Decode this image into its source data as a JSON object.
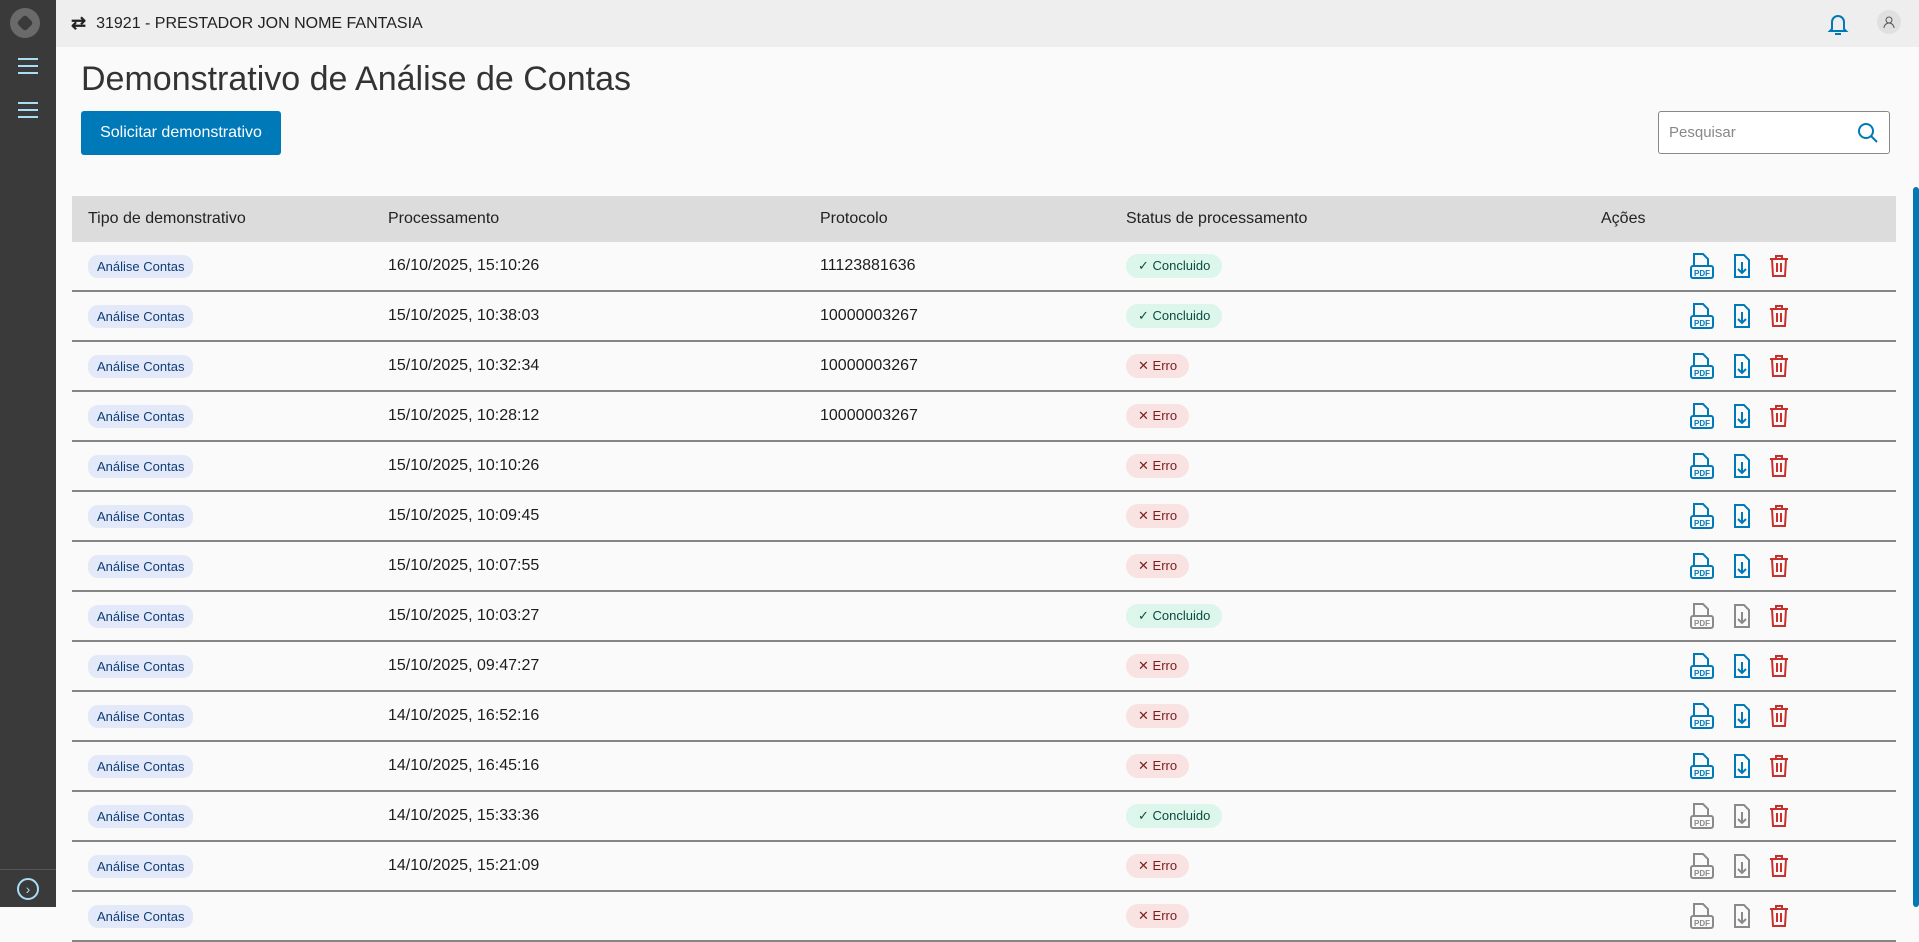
{
  "topbar": {
    "provider": "31921 - PRESTADOR JON NOME FANTASIA"
  },
  "page": {
    "title": "Demonstrativo de Análise de Contas",
    "request_button": "Solicitar demonstrativo",
    "search_placeholder": "Pesquisar"
  },
  "table": {
    "headers": [
      "Tipo de demonstrativo",
      "Processamento",
      "Protocolo",
      "Status de processamento",
      "Ações"
    ],
    "rows": [
      {
        "tipo": "Análise Contas",
        "proc": "16/10/2025, 15:10:26",
        "protocolo": "11123881636",
        "status": "Concluido",
        "ok": true,
        "enabled": true
      },
      {
        "tipo": "Análise Contas",
        "proc": "15/10/2025, 10:38:03",
        "protocolo": "10000003267",
        "status": "Concluido",
        "ok": true,
        "enabled": true
      },
      {
        "tipo": "Análise Contas",
        "proc": "15/10/2025, 10:32:34",
        "protocolo": "10000003267",
        "status": "Erro",
        "ok": false,
        "enabled": true
      },
      {
        "tipo": "Análise Contas",
        "proc": "15/10/2025, 10:28:12",
        "protocolo": "10000003267",
        "status": "Erro",
        "ok": false,
        "enabled": true
      },
      {
        "tipo": "Análise Contas",
        "proc": "15/10/2025, 10:10:26",
        "protocolo": "",
        "status": "Erro",
        "ok": false,
        "enabled": true
      },
      {
        "tipo": "Análise Contas",
        "proc": "15/10/2025, 10:09:45",
        "protocolo": "",
        "status": "Erro",
        "ok": false,
        "enabled": true
      },
      {
        "tipo": "Análise Contas",
        "proc": "15/10/2025, 10:07:55",
        "protocolo": "",
        "status": "Erro",
        "ok": false,
        "enabled": true
      },
      {
        "tipo": "Análise Contas",
        "proc": "15/10/2025, 10:03:27",
        "protocolo": "",
        "status": "Concluido",
        "ok": true,
        "enabled": false
      },
      {
        "tipo": "Análise Contas",
        "proc": "15/10/2025, 09:47:27",
        "protocolo": "",
        "status": "Erro",
        "ok": false,
        "enabled": true
      },
      {
        "tipo": "Análise Contas",
        "proc": "14/10/2025, 16:52:16",
        "protocolo": "",
        "status": "Erro",
        "ok": false,
        "enabled": true
      },
      {
        "tipo": "Análise Contas",
        "proc": "14/10/2025, 16:45:16",
        "protocolo": "",
        "status": "Erro",
        "ok": false,
        "enabled": true
      },
      {
        "tipo": "Análise Contas",
        "proc": "14/10/2025, 15:33:36",
        "protocolo": "",
        "status": "Concluido",
        "ok": true,
        "enabled": false
      },
      {
        "tipo": "Análise Contas",
        "proc": "14/10/2025, 15:21:09",
        "protocolo": "",
        "status": "Erro",
        "ok": false,
        "enabled": false
      },
      {
        "tipo": "Análise Contas",
        "proc": "",
        "protocolo": "",
        "status": "Erro",
        "ok": false,
        "enabled": false
      }
    ]
  },
  "colors": {
    "primary": "#0079b8",
    "delete": "#c9302c",
    "disabled": "#8a8a8a",
    "ok_bg": "#dcf6ec",
    "err_bg": "#f8e2e2"
  }
}
